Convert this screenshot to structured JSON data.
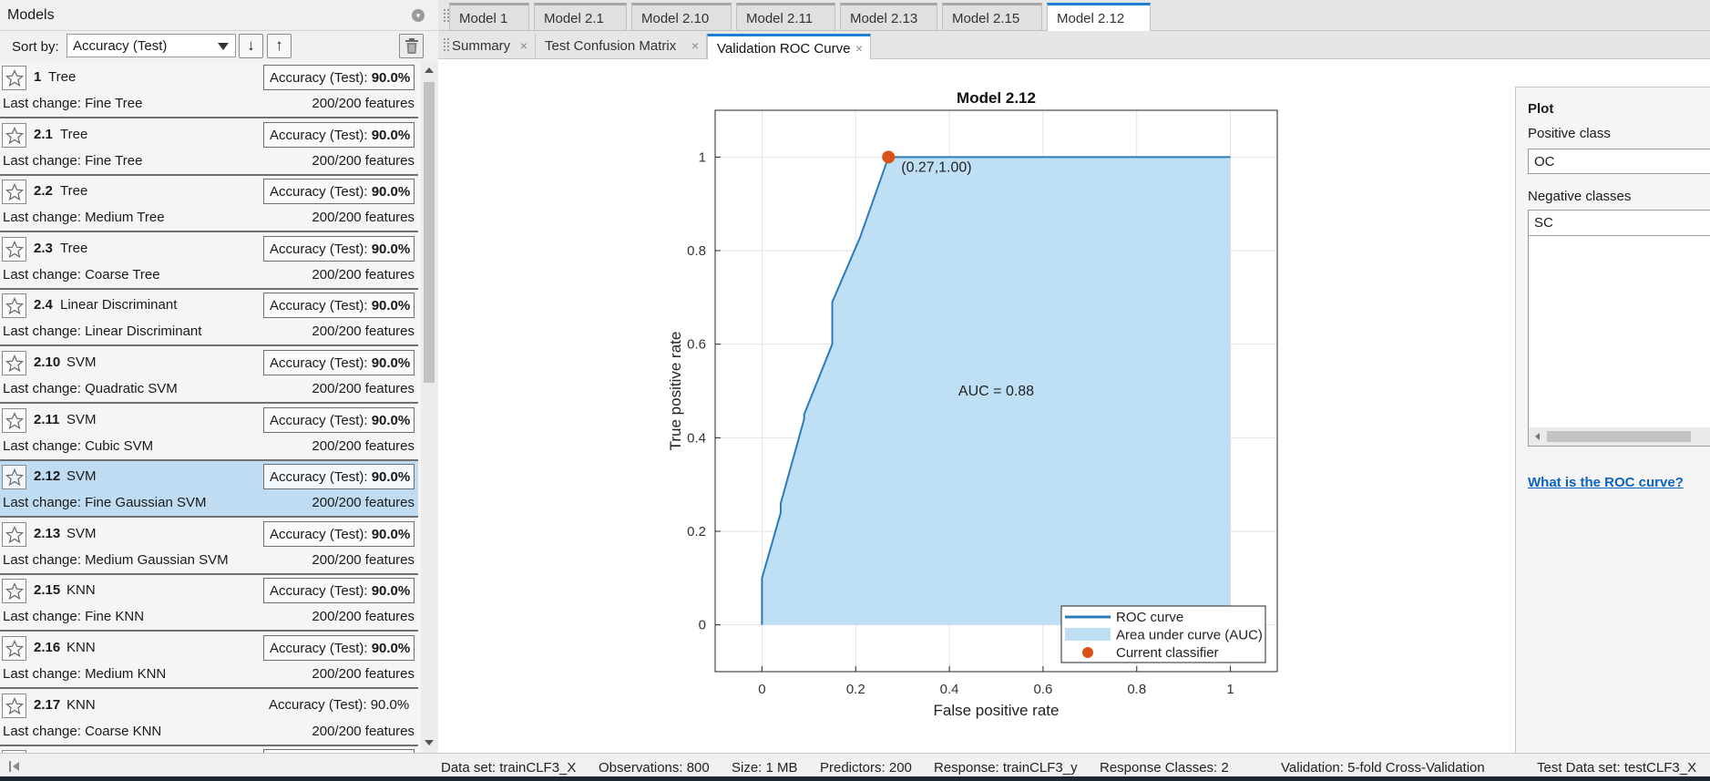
{
  "models_panel": {
    "title": "Models",
    "sort_label": "Sort by:",
    "sort_value": "Accuracy (Test)",
    "sort_ascending_icon": "arrow-down-icon",
    "sort_descending_icon": "arrow-up-icon",
    "delete_icon": "trash-icon"
  },
  "models": [
    {
      "num": "1",
      "type": "Tree",
      "accuracy_label": "Accuracy (Test):",
      "accuracy": "90.0%",
      "last_change": "Last change: Fine Tree",
      "features": "200/200 features"
    },
    {
      "num": "2.1",
      "type": "Tree",
      "accuracy_label": "Accuracy (Test):",
      "accuracy": "90.0%",
      "last_change": "Last change: Fine Tree",
      "features": "200/200 features"
    },
    {
      "num": "2.2",
      "type": "Tree",
      "accuracy_label": "Accuracy (Test):",
      "accuracy": "90.0%",
      "last_change": "Last change: Medium Tree",
      "features": "200/200 features"
    },
    {
      "num": "2.3",
      "type": "Tree",
      "accuracy_label": "Accuracy (Test):",
      "accuracy": "90.0%",
      "last_change": "Last change: Coarse Tree",
      "features": "200/200 features"
    },
    {
      "num": "2.4",
      "type": "Linear Discriminant",
      "accuracy_label": "Accuracy (Test):",
      "accuracy": "90.0%",
      "last_change": "Last change: Linear Discriminant",
      "features": "200/200 features"
    },
    {
      "num": "2.10",
      "type": "SVM",
      "accuracy_label": "Accuracy (Test):",
      "accuracy": "90.0%",
      "last_change": "Last change: Quadratic SVM",
      "features": "200/200 features"
    },
    {
      "num": "2.11",
      "type": "SVM",
      "accuracy_label": "Accuracy (Test):",
      "accuracy": "90.0%",
      "last_change": "Last change: Cubic SVM",
      "features": "200/200 features"
    },
    {
      "num": "2.12",
      "type": "SVM",
      "accuracy_label": "Accuracy (Test):",
      "accuracy": "90.0%",
      "last_change": "Last change: Fine Gaussian SVM",
      "features": "200/200 features",
      "selected": true
    },
    {
      "num": "2.13",
      "type": "SVM",
      "accuracy_label": "Accuracy (Test):",
      "accuracy": "90.0%",
      "last_change": "Last change: Medium Gaussian SVM",
      "features": "200/200 features"
    },
    {
      "num": "2.15",
      "type": "KNN",
      "accuracy_label": "Accuracy (Test):",
      "accuracy": "90.0%",
      "last_change": "Last change: Fine KNN",
      "features": "200/200 features"
    },
    {
      "num": "2.16",
      "type": "KNN",
      "accuracy_label": "Accuracy (Test):",
      "accuracy": "90.0%",
      "last_change": "Last change: Medium KNN",
      "features": "200/200 features"
    },
    {
      "num": "2.17",
      "type": "KNN",
      "accuracy_label": "Accuracy (Test):",
      "accuracy": "90.0%",
      "last_change": "Last change: Coarse KNN",
      "features": "200/200 features",
      "plain": true
    }
  ],
  "model_tabs": [
    "Model 1",
    "Model 2.1",
    "Model 2.10",
    "Model 2.11",
    "Model 2.13",
    "Model 2.15",
    "Model 2.12"
  ],
  "active_model_tab": "Model 2.12",
  "view_tabs": [
    "Summary",
    "Test Confusion Matrix",
    "Validation ROC Curve"
  ],
  "active_view_tab": "Validation ROC Curve",
  "chart_data": {
    "type": "area",
    "title": "Model 2.12",
    "xlabel": "False positive rate",
    "ylabel": "True positive rate",
    "xlim": [
      -0.1,
      1.1
    ],
    "ylim": [
      -0.1,
      1.1
    ],
    "xticks": [
      "0",
      "0.2",
      "0.4",
      "0.6",
      "0.8",
      "1"
    ],
    "yticks": [
      "0",
      "0.2",
      "0.4",
      "0.6",
      "0.8",
      "1"
    ],
    "grid": true,
    "roc_curve": {
      "x": [
        0,
        0,
        0.04,
        0.04,
        0.09,
        0.09,
        0.15,
        0.15,
        0.21,
        0.27,
        1.0
      ],
      "y": [
        0,
        0.1,
        0.24,
        0.26,
        0.44,
        0.45,
        0.6,
        0.69,
        0.83,
        1.0,
        1.0
      ]
    },
    "current_classifier": {
      "x": 0.27,
      "y": 1.0,
      "label": "(0.27,1.00)"
    },
    "auc_label": "AUC = 0.88",
    "legend": [
      "ROC curve",
      "Area under curve (AUC)",
      "Current classifier"
    ],
    "legend_position": "bottom-right",
    "colors": {
      "curve": "#2b7bba",
      "area": "#bedff4",
      "classifier": "#d95319"
    }
  },
  "plot_panel": {
    "title": "Plot",
    "positive_class_label": "Positive class",
    "positive_class_value": "OC",
    "negative_classes_label": "Negative classes",
    "negative_classes": [
      "SC"
    ],
    "help_link": "What is the ROC curve?"
  },
  "status_bar": {
    "dataset": "Data set: trainCLF3_X",
    "observations": "Observations: 800",
    "size": "Size: 1 MB",
    "predictors": "Predictors: 200",
    "response": "Response: trainCLF3_y",
    "response_classes": "Response Classes: 2",
    "validation": "Validation: 5-fold Cross-Validation",
    "test_dataset": "Test Data set: testCLF3_X"
  }
}
